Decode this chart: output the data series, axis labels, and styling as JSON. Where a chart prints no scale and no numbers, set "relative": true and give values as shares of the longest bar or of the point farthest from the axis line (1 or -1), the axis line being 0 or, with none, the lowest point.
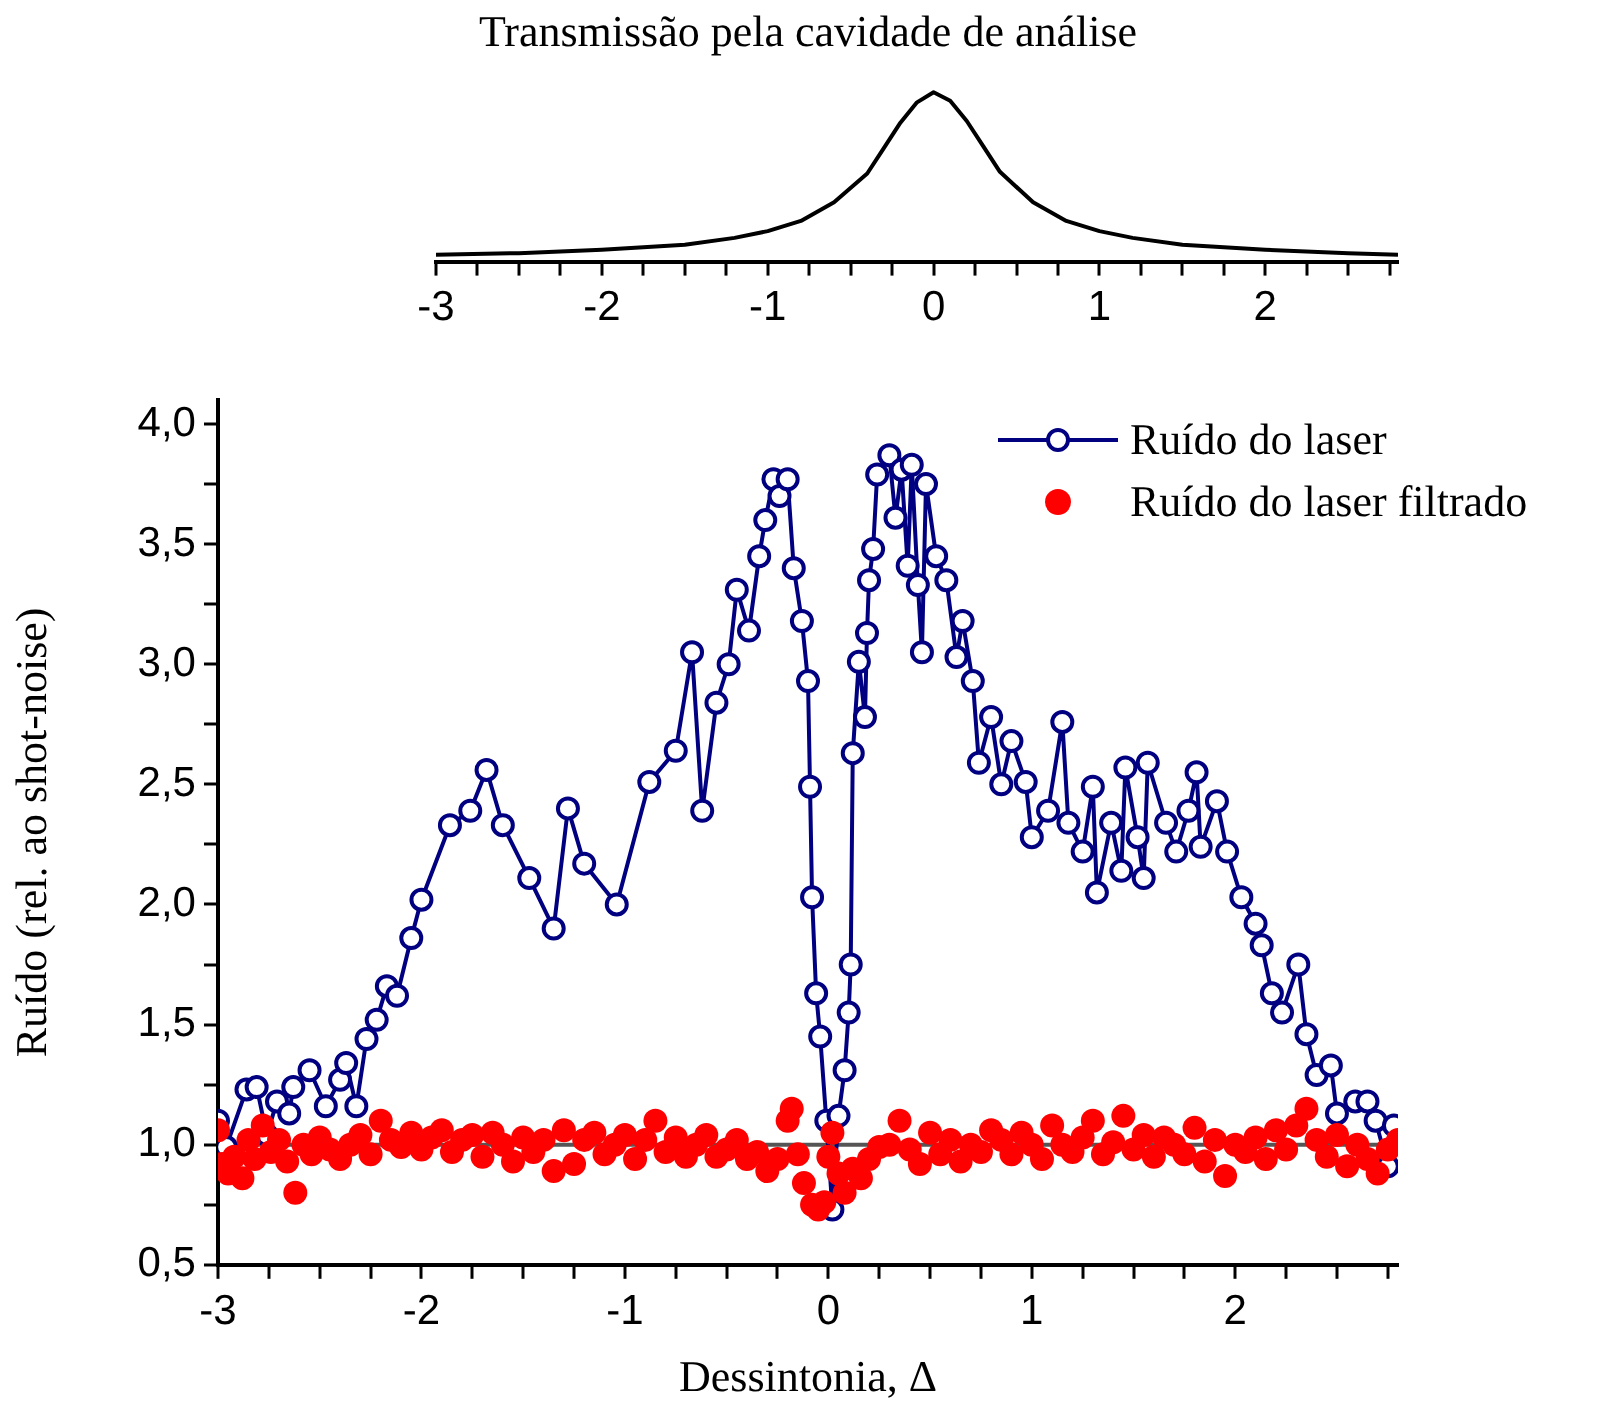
{
  "chart_data": [
    {
      "type": "line",
      "title": "Transmissão pela cavidade de análise",
      "relative": true,
      "color": "#000000",
      "tick_labels": "x",
      "x": [
        -3,
        -2.5,
        -2,
        -1.5,
        -1.2,
        -1,
        -0.8,
        -0.6,
        -0.4,
        -0.3,
        -0.2,
        -0.1,
        0,
        0.1,
        0.2,
        0.3,
        0.4,
        0.6,
        0.8,
        1,
        1.2,
        1.5,
        2,
        2.5,
        2.8
      ],
      "values": [
        0.04,
        0.05,
        0.07,
        0.1,
        0.14,
        0.18,
        0.24,
        0.35,
        0.52,
        0.67,
        0.82,
        0.94,
        1,
        0.95,
        0.83,
        0.68,
        0.53,
        0.35,
        0.24,
        0.18,
        0.14,
        0.1,
        0.07,
        0.05,
        0.04
      ],
      "xlim": [
        -3,
        2.8
      ],
      "xticks": [
        -3,
        {
          "value": -2.75,
          "label": null
        },
        {
          "value": -2.5,
          "label": null
        },
        {
          "value": -2.25,
          "label": null
        },
        -2,
        {
          "value": -1.75,
          "label": null
        },
        {
          "value": -1.5,
          "label": null
        },
        {
          "value": -1.25,
          "label": null
        },
        -1,
        {
          "value": -0.75,
          "label": null
        },
        {
          "value": -0.5,
          "label": null
        },
        {
          "value": -0.25,
          "label": null
        },
        0,
        {
          "value": 0.25,
          "label": null
        },
        {
          "value": 0.5,
          "label": null
        },
        {
          "value": 0.75,
          "label": null
        },
        1,
        {
          "value": 1.25,
          "label": null
        },
        {
          "value": 1.5,
          "label": null
        },
        {
          "value": 1.75,
          "label": null
        },
        2,
        {
          "value": 2.25,
          "label": null
        },
        {
          "value": 2.5,
          "label": null
        },
        {
          "value": 2.75,
          "label": null
        }
      ]
    },
    {
      "type": "line",
      "xlabel": "Dessintonia, Δ",
      "ylabel": "Ruído (rel. ao shot-noise)",
      "legend": "top right",
      "marker": "circle",
      "xlim": [
        -3,
        2.8
      ],
      "ylim": [
        0.5,
        4.1
      ],
      "xticks": [
        -3,
        {
          "value": -2.75,
          "label": null
        },
        {
          "value": -2.5,
          "label": null
        },
        {
          "value": -2.25,
          "label": null
        },
        -2,
        {
          "value": -1.75,
          "label": null
        },
        {
          "value": -1.5,
          "label": null
        },
        {
          "value": -1.25,
          "label": null
        },
        -1,
        {
          "value": -0.75,
          "label": null
        },
        {
          "value": -0.5,
          "label": null
        },
        {
          "value": -0.25,
          "label": null
        },
        0,
        {
          "value": 0.25,
          "label": null
        },
        {
          "value": 0.5,
          "label": null
        },
        {
          "value": 0.75,
          "label": null
        },
        1,
        {
          "value": 1.25,
          "label": null
        },
        {
          "value": 1.5,
          "label": null
        },
        {
          "value": 1.75,
          "label": null
        },
        2,
        {
          "value": 2.25,
          "label": null
        },
        {
          "value": 2.5,
          "label": null
        },
        {
          "value": 2.75,
          "label": null
        }
      ],
      "yticks": [
        {
          "value": 0.5,
          "label": "0,5"
        },
        {
          "value": 0.75,
          "label": null
        },
        {
          "value": 1,
          "label": "1,0"
        },
        {
          "value": 1.25,
          "label": null
        },
        {
          "value": 1.5,
          "label": "1,5"
        },
        {
          "value": 1.75,
          "label": null
        },
        {
          "value": 2,
          "label": "2,0"
        },
        {
          "value": 2.25,
          "label": null
        },
        {
          "value": 2.5,
          "label": "2,5"
        },
        {
          "value": 2.75,
          "label": null
        },
        {
          "value": 3,
          "label": "3,0"
        },
        {
          "value": 3.25,
          "label": null
        },
        {
          "value": 3.5,
          "label": "3,5"
        },
        {
          "value": 3.75,
          "label": null
        },
        {
          "value": 4,
          "label": "4,0"
        }
      ],
      "ref_lines": [
        {
          "axis": "y",
          "value": 1,
          "color": "#555555"
        }
      ],
      "series": [
        {
          "name": "Ruído do laser",
          "type": "line",
          "color": "#000080",
          "x": [
            -3,
            -2.96,
            -2.86,
            -2.81,
            -2.76,
            -2.71,
            -2.65,
            -2.63,
            -2.55,
            -2.47,
            -2.4,
            -2.37,
            -2.32,
            -2.27,
            -2.22,
            -2.17,
            -2.12,
            -2.05,
            -2,
            -1.86,
            -1.76,
            -1.68,
            -1.6,
            -1.47,
            -1.35,
            -1.28,
            -1.2,
            -1.04,
            -0.88,
            -0.75,
            -0.67,
            -0.62,
            -0.55,
            -0.49,
            -0.45,
            -0.39,
            -0.34,
            -0.31,
            -0.27,
            -0.24,
            -0.2,
            -0.17,
            -0.13,
            -0.1,
            -0.09,
            -0.08,
            -0.06,
            -0.04,
            -0.01,
            0.02,
            0.05,
            0.08,
            0.1,
            0.11,
            0.12,
            0.15,
            0.18,
            0.19,
            0.2,
            0.22,
            0.24,
            0.3,
            0.33,
            0.36,
            0.39,
            0.41,
            0.44,
            0.46,
            0.48,
            0.53,
            0.58,
            0.63,
            0.66,
            0.71,
            0.74,
            0.8,
            0.85,
            0.9,
            0.97,
            1,
            1.08,
            1.15,
            1.18,
            1.25,
            1.3,
            1.32,
            1.39,
            1.44,
            1.46,
            1.52,
            1.55,
            1.57,
            1.66,
            1.71,
            1.77,
            1.81,
            1.83,
            1.91,
            1.96,
            2.03,
            2.1,
            2.13,
            2.18,
            2.23,
            2.31,
            2.35,
            2.4,
            2.47,
            2.5,
            2.59,
            2.65,
            2.69,
            2.75,
            2.78
          ],
          "values": [
            1.1,
            0.99,
            1.23,
            1.24,
            1.04,
            1.18,
            1.13,
            1.24,
            1.31,
            1.16,
            1.27,
            1.34,
            1.16,
            1.44,
            1.52,
            1.66,
            1.62,
            1.86,
            2.02,
            2.33,
            2.39,
            2.56,
            2.33,
            2.11,
            1.9,
            2.4,
            2.17,
            2,
            2.51,
            2.64,
            3.05,
            2.39,
            2.84,
            3,
            3.31,
            3.14,
            3.45,
            3.6,
            3.77,
            3.7,
            3.77,
            3.4,
            3.18,
            2.93,
            2.49,
            2.03,
            1.63,
            1.45,
            1.1,
            0.73,
            1.12,
            1.31,
            1.55,
            1.75,
            2.63,
            3.01,
            2.78,
            3.13,
            3.35,
            3.48,
            3.79,
            3.87,
            3.61,
            3.81,
            3.41,
            3.83,
            3.33,
            3.05,
            3.75,
            3.45,
            3.35,
            3.03,
            3.18,
            2.93,
            2.59,
            2.78,
            2.5,
            2.68,
            2.51,
            2.28,
            2.39,
            2.76,
            2.34,
            2.22,
            2.49,
            2.05,
            2.34,
            2.14,
            2.57,
            2.28,
            2.11,
            2.59,
            2.34,
            2.22,
            2.39,
            2.55,
            2.24,
            2.43,
            2.22,
            2.03,
            1.92,
            1.83,
            1.63,
            1.55,
            1.75,
            1.46,
            1.29,
            1.33,
            1.13,
            1.18,
            1.18,
            1.1,
            0.91,
            1.08
          ]
        },
        {
          "name": "Ruído do laser filtrado",
          "type": "scatter",
          "color": "#ff0000",
          "x": [
            -3,
            -2.98,
            -2.95,
            -2.92,
            -2.88,
            -2.85,
            -2.82,
            -2.78,
            -2.74,
            -2.7,
            -2.66,
            -2.62,
            -2.58,
            -2.54,
            -2.5,
            -2.45,
            -2.4,
            -2.35,
            -2.3,
            -2.25,
            -2.2,
            -2.15,
            -2.1,
            -2.05,
            -2,
            -1.95,
            -1.9,
            -1.85,
            -1.8,
            -1.75,
            -1.7,
            -1.65,
            -1.6,
            -1.55,
            -1.5,
            -1.45,
            -1.4,
            -1.35,
            -1.3,
            -1.25,
            -1.2,
            -1.15,
            -1.1,
            -1.05,
            -1,
            -0.95,
            -0.9,
            -0.85,
            -0.8,
            -0.75,
            -0.7,
            -0.65,
            -0.6,
            -0.55,
            -0.5,
            -0.45,
            -0.4,
            -0.35,
            -0.3,
            -0.25,
            -0.2,
            -0.18,
            -0.15,
            -0.12,
            -0.08,
            -0.05,
            -0.02,
            0,
            0.02,
            0.05,
            0.08,
            0.12,
            0.16,
            0.2,
            0.25,
            0.3,
            0.35,
            0.4,
            0.45,
            0.5,
            0.55,
            0.6,
            0.65,
            0.7,
            0.75,
            0.8,
            0.85,
            0.9,
            0.95,
            1,
            1.05,
            1.1,
            1.15,
            1.2,
            1.25,
            1.3,
            1.35,
            1.4,
            1.45,
            1.5,
            1.55,
            1.6,
            1.65,
            1.7,
            1.75,
            1.8,
            1.85,
            1.9,
            1.95,
            2,
            2.05,
            2.1,
            2.15,
            2.2,
            2.25,
            2.3,
            2.35,
            2.4,
            2.45,
            2.5,
            2.55,
            2.6,
            2.65,
            2.7,
            2.75,
            2.8
          ],
          "values": [
            1.06,
            0.92,
            0.88,
            0.95,
            0.86,
            1.02,
            0.94,
            1.08,
            0.97,
            1.02,
            0.93,
            0.8,
            1,
            0.96,
            1.03,
            0.98,
            0.94,
            1,
            1.04,
            0.96,
            1.1,
            1.02,
            0.99,
            1.05,
            0.98,
            1.03,
            1.06,
            0.97,
            1.02,
            1.04,
            0.95,
            1.05,
            1,
            0.93,
            1.03,
            0.97,
            1.02,
            0.89,
            1.06,
            0.92,
            1.02,
            1.05,
            0.96,
            1,
            1.04,
            0.94,
            1.02,
            1.1,
            0.97,
            1.03,
            0.95,
            1,
            1.04,
            0.95,
            0.98,
            1.02,
            0.94,
            0.97,
            0.89,
            0.94,
            1.1,
            1.15,
            0.96,
            0.84,
            0.75,
            0.73,
            0.76,
            0.95,
            1.05,
            0.88,
            0.8,
            0.9,
            0.86,
            0.94,
            0.99,
            1,
            1.1,
            0.98,
            0.92,
            1.05,
            0.96,
            1.02,
            0.93,
            1,
            0.97,
            1.06,
            1.02,
            0.96,
            1.05,
            1,
            0.94,
            1.08,
            1,
            0.97,
            1.03,
            1.1,
            0.96,
            1.01,
            1.12,
            0.98,
            1.04,
            0.95,
            1.03,
            1,
            0.96,
            1.07,
            0.93,
            1.02,
            0.87,
            1,
            0.97,
            1.03,
            0.94,
            1.06,
            0.98,
            1.08,
            1.15,
            1.02,
            0.95,
            1.04,
            0.91,
            1,
            0.94,
            0.88,
            0.98,
            1.02
          ]
        }
      ]
    }
  ]
}
